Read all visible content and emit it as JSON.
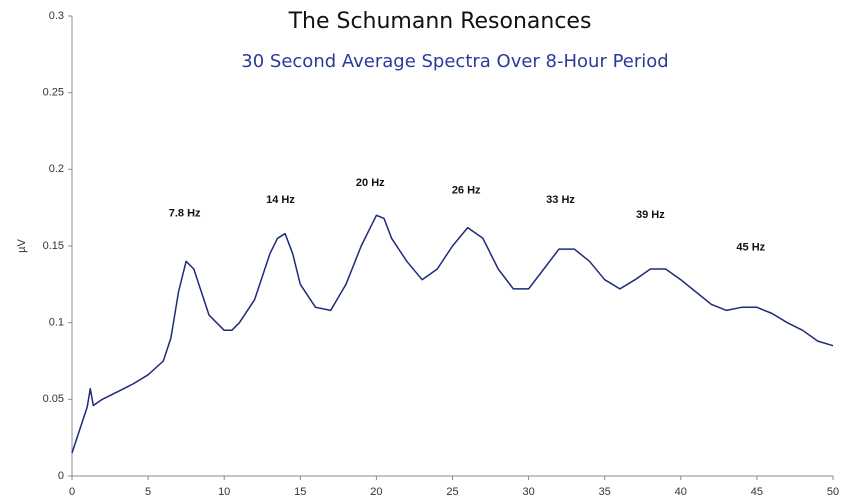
{
  "chart_data": {
    "type": "line",
    "title": "The Schumann Resonances",
    "subtitle": "30 Second Average Spectra Over 8-Hour Period",
    "y_label": "µV",
    "color": "#1f2a7a",
    "x": [
      0,
      0.5,
      1,
      1.2,
      1.4,
      2,
      3,
      4,
      5,
      6,
      6.5,
      7,
      7.5,
      8,
      8.5,
      9,
      9.5,
      10,
      10.5,
      11,
      12,
      13,
      13.5,
      14,
      14.5,
      15,
      16,
      17,
      18,
      19,
      20,
      20.5,
      21,
      22,
      23,
      24,
      25,
      26,
      27,
      28,
      29,
      30,
      31,
      32,
      33,
      34,
      35,
      36,
      37,
      38,
      39,
      40,
      41,
      42,
      43,
      44,
      45,
      46,
      47,
      48,
      49,
      50
    ],
    "values": [
      0.015,
      0.03,
      0.045,
      0.057,
      0.046,
      0.05,
      0.055,
      0.06,
      0.066,
      0.075,
      0.09,
      0.12,
      0.14,
      0.135,
      0.12,
      0.105,
      0.1,
      0.095,
      0.095,
      0.1,
      0.115,
      0.145,
      0.155,
      0.158,
      0.145,
      0.125,
      0.11,
      0.108,
      0.125,
      0.15,
      0.17,
      0.168,
      0.155,
      0.14,
      0.128,
      0.135,
      0.15,
      0.162,
      0.155,
      0.135,
      0.122,
      0.122,
      0.135,
      0.148,
      0.148,
      0.14,
      0.128,
      0.122,
      0.128,
      0.135,
      0.135,
      0.128,
      0.12,
      0.112,
      0.108,
      0.11,
      0.11,
      0.106,
      0.1,
      0.095,
      0.088,
      0.085
    ],
    "xlim": [
      0,
      50
    ],
    "xticks": [
      0,
      5,
      10,
      15,
      20,
      25,
      30,
      35,
      40,
      45,
      50
    ],
    "ylim": [
      0,
      0.3
    ],
    "yticks": [
      0,
      0.05,
      0.1,
      0.15,
      0.2,
      0.25,
      0.3
    ],
    "grid": false,
    "annotations": [
      {
        "text": "7.8 Hz",
        "x": 7.4,
        "y": 0.171
      },
      {
        "text": "14 Hz",
        "x": 13.7,
        "y": 0.18
      },
      {
        "text": "20 Hz",
        "x": 19.6,
        "y": 0.191
      },
      {
        "text": "26 Hz",
        "x": 25.9,
        "y": 0.186
      },
      {
        "text": "33 Hz",
        "x": 32.1,
        "y": 0.18
      },
      {
        "text": "39 Hz",
        "x": 38,
        "y": 0.17
      },
      {
        "text": "45 Hz",
        "x": 44.6,
        "y": 0.149
      }
    ]
  }
}
